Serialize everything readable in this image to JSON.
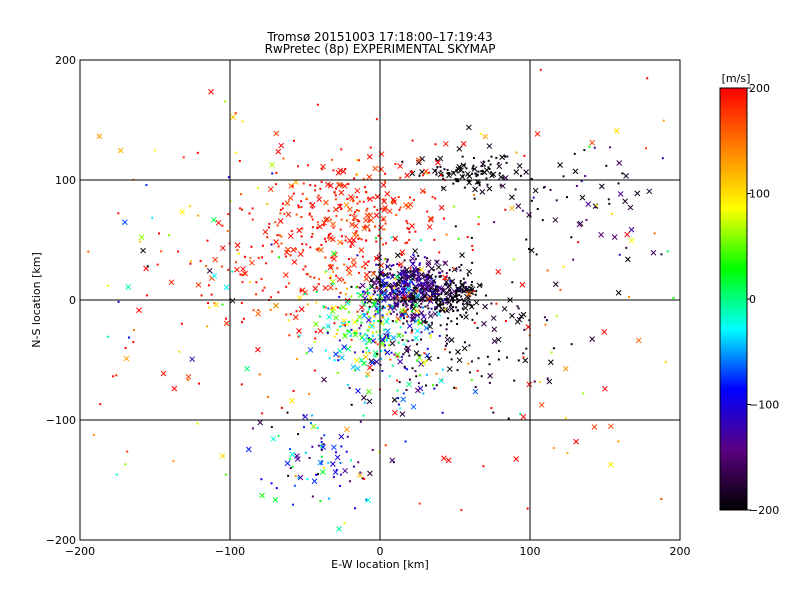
{
  "chart_data": {
    "type": "scatter",
    "title_lines": [
      "Tromsø 20151003 17:18:00–17:19:43",
      "RwPretec (8p) EXPERIMENTAL SKYMAP"
    ],
    "xlabel": "E-W location [km]",
    "ylabel": "N-S location [km]",
    "xlim": [
      -200,
      200
    ],
    "ylim": [
      -200,
      200
    ],
    "x_ticks": [
      -200,
      -100,
      0,
      100,
      200
    ],
    "y_ticks": [
      -200,
      -100,
      0,
      100,
      200
    ],
    "x_tick_labels": [
      "−200",
      "−100",
      "0",
      "100",
      "200"
    ],
    "y_tick_labels": [
      "−200",
      "−100",
      "0",
      "100",
      "200"
    ],
    "grid": true,
    "colorbar": {
      "label": "[m/s]",
      "range": [
        -200,
        200
      ],
      "ticks": [
        -200,
        -100,
        0,
        100,
        200
      ],
      "tick_labels": [
        "−200",
        "−100",
        "0",
        "100",
        "200"
      ],
      "colors": [
        "#000000",
        "#5a0080",
        "#0000ff",
        "#00ffff",
        "#00ff00",
        "#ffff00",
        "#ff8000",
        "#ff0000"
      ]
    },
    "clusters": [
      {
        "cx": 20,
        "cy": 10,
        "sx": 15,
        "sy": 12,
        "n": 450,
        "v": -150,
        "vs": 40
      },
      {
        "cx": 50,
        "cy": 5,
        "sx": 10,
        "sy": 10,
        "n": 120,
        "v": -195,
        "vs": 10
      },
      {
        "cx": 60,
        "cy": 105,
        "sx": 15,
        "sy": 8,
        "n": 110,
        "v": -195,
        "vs": 10
      },
      {
        "cx": -20,
        "cy": 70,
        "sx": 30,
        "sy": 25,
        "n": 260,
        "v": 190,
        "vs": 15
      },
      {
        "cx": -50,
        "cy": 20,
        "sx": 40,
        "sy": 30,
        "n": 150,
        "v": 185,
        "vs": 20
      },
      {
        "cx": -10,
        "cy": -20,
        "sx": 20,
        "sy": 20,
        "n": 200,
        "v": 20,
        "vs": 60
      },
      {
        "cx": -40,
        "cy": -130,
        "sx": 20,
        "sy": 20,
        "n": 90,
        "v": -90,
        "vs": 70
      },
      {
        "cx": 10,
        "cy": -50,
        "sx": 20,
        "sy": 25,
        "n": 90,
        "v": -110,
        "vs": 60
      },
      {
        "cx": 60,
        "cy": -30,
        "sx": 30,
        "sy": 30,
        "n": 110,
        "v": -190,
        "vs": 15
      },
      {
        "cx": 130,
        "cy": 80,
        "sx": 30,
        "sy": 20,
        "n": 70,
        "v": -180,
        "vs": 40
      },
      {
        "cx": 0,
        "cy": 0,
        "sx": 120,
        "sy": 110,
        "n": 240,
        "v": 150,
        "vs": 80
      },
      {
        "cx": -140,
        "cy": 0,
        "sx": 40,
        "sy": 80,
        "n": 60,
        "v": 60,
        "vs": 120
      }
    ]
  }
}
